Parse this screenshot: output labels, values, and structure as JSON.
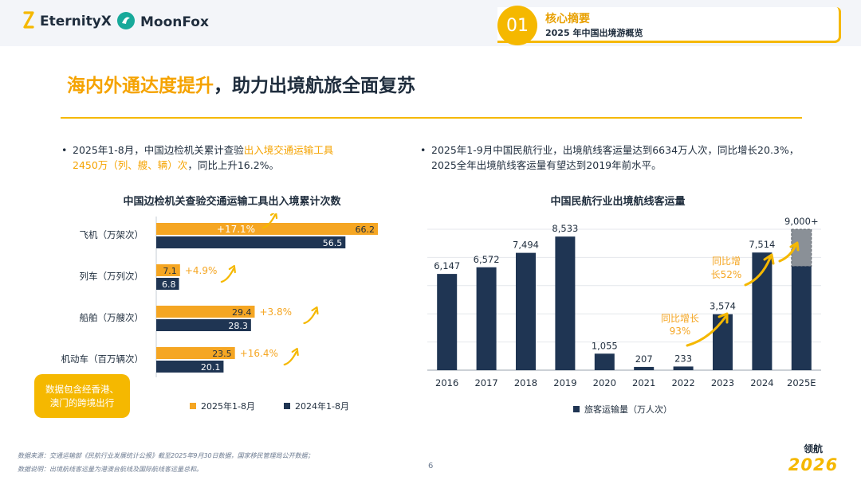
{
  "header": {
    "logo1": "EternityX",
    "logo2": "MoonFox",
    "section_number": "01",
    "section_title": "核心摘要",
    "section_subtitle": "2025 年中国出境游概览"
  },
  "title": {
    "highlight": "海内外通达度提升",
    "rest": "，助力出境航旅全面复苏"
  },
  "left_bullet": {
    "line1_a": "2025年1-8月，中国边检机关累计查验",
    "line1_hl": "出入境交通运输工具",
    "line2_hl": "2450万（列、艘、辆）次",
    "line2_b": "，同比上升16.2%。"
  },
  "right_bullet": {
    "line1": "2025年1-9月中国民航行业，出境航线客运量达到6634万人次，同比增长20.3%，",
    "line2": "2025全年出境航线客运量有望达到2019年前水平。"
  },
  "note": {
    "line1": "数据包含经香港、",
    "line2": "澳门的跨境出行"
  },
  "footer": {
    "source": "数据来源：交通运输部《民航行业发展统计公报》截至2025年9月30日数据，国家移民管理局公开数据；",
    "note": "数据说明：出境航线客运量为港澳台航线及国际航线客运量总和。",
    "page": "6"
  },
  "brand": {
    "line1": "领航",
    "line2": "2026"
  },
  "colors": {
    "accent": "#f5b800",
    "orange": "#f5a623",
    "navy": "#1f3553",
    "estimate": "#8a9097",
    "text": "#1f2d3d"
  },
  "chart_data": [
    {
      "type": "bar",
      "orientation": "horizontal",
      "title": "中国边检机关查验交通运输工具出入境累计次数",
      "categories": [
        "飞机（万架次）",
        "列车（万列次）",
        "船舶（万艘次）",
        "机动车（百万辆次）"
      ],
      "series": [
        {
          "name": "2025年1-8月",
          "color": "#f5a623",
          "values": [
            66.2,
            7.1,
            29.4,
            23.5
          ]
        },
        {
          "name": "2024年1-8月",
          "color": "#1f3553",
          "values": [
            56.5,
            6.8,
            28.3,
            20.1
          ]
        }
      ],
      "value_labels": {
        "2025": [
          "66.2",
          "7.1",
          "29.4",
          "23.5"
        ],
        "2024": [
          "56.5",
          "6.8",
          "28.3",
          "20.1"
        ]
      },
      "annotations": [
        "+17.1%",
        "+4.9%",
        "+3.8%",
        "+16.4%"
      ],
      "legend_position": "bottom"
    },
    {
      "type": "bar",
      "title": "中国民航行业出境航线客运量",
      "categories": [
        "2016",
        "2017",
        "2018",
        "2019",
        "2020",
        "2021",
        "2022",
        "2023",
        "2024",
        "2025E"
      ],
      "series": [
        {
          "name": "旅客运输量（万人次）",
          "color": "#1f3553",
          "values": [
            6147,
            6572,
            7494,
            8533,
            1055,
            207,
            233,
            3574,
            7514,
            9000
          ]
        }
      ],
      "value_labels": [
        "6,147",
        "6,572",
        "7,494",
        "8,533",
        "1,055",
        "207",
        "233",
        "3,574",
        "7,514",
        "9,000+"
      ],
      "estimate_base": 6634,
      "annotations": [
        {
          "line1": "同比增长",
          "line2": "93%"
        },
        {
          "line1": "同比增",
          "line2": "长52%"
        }
      ],
      "ylim": [
        0,
        9000
      ],
      "grid": true,
      "legend_position": "bottom"
    }
  ]
}
